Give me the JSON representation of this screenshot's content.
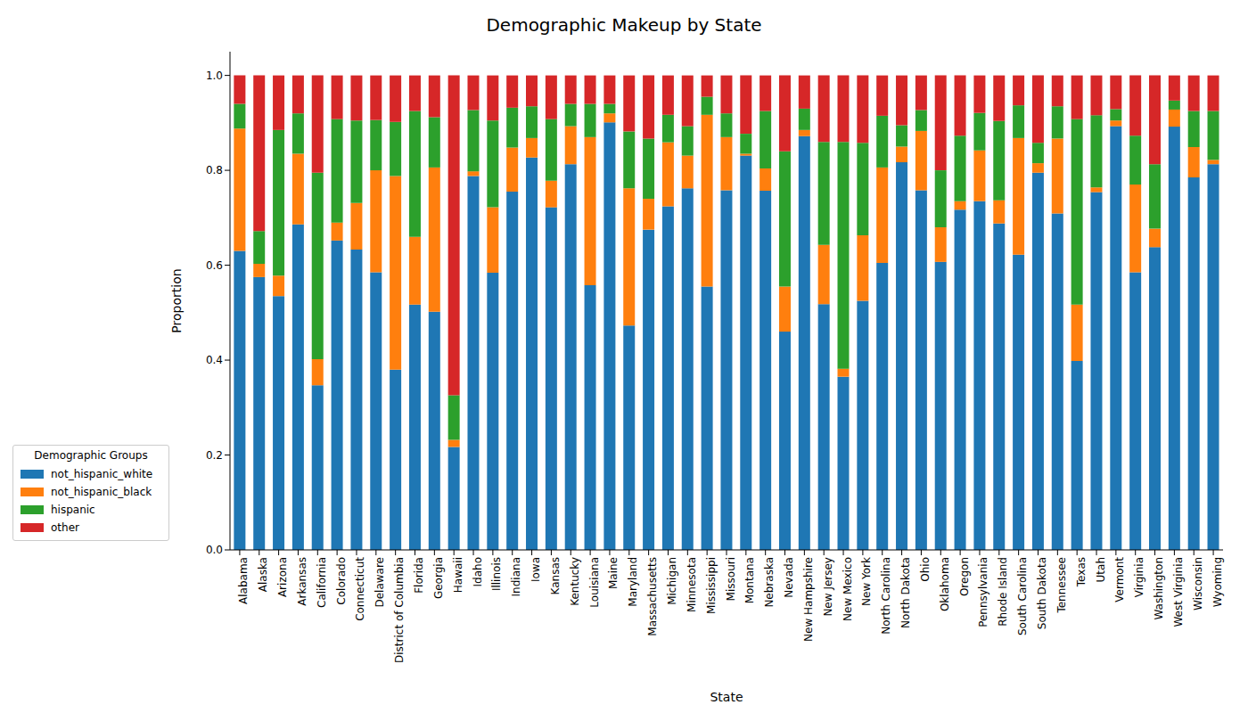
{
  "chart_data": {
    "type": "bar",
    "title": "Demographic Makeup by State",
    "x_label": "State",
    "y_label": "Proportion",
    "stacked": true,
    "legend": "lower left",
    "legend_title": "Demographic Groups",
    "ylim": [
      0,
      1.05
    ],
    "yticks": [
      {
        "value": 0,
        "label": "0.0"
      },
      0.2,
      0.4,
      0.6,
      0.8,
      {
        "value": 1,
        "label": "1.0"
      }
    ],
    "categories": [
      "Alabama",
      "Alaska",
      "Arizona",
      "Arkansas",
      "California",
      "Colorado",
      "Connecticut",
      "Delaware",
      "District of Columbia",
      "Florida",
      "Georgia",
      "Hawaii",
      "Idaho",
      "Illinois",
      "Indiana",
      "Iowa",
      "Kansas",
      "Kentucky",
      "Louisiana",
      "Maine",
      "Maryland",
      "Massachusetts",
      "Michigan",
      "Minnesota",
      "Mississippi",
      "Missouri",
      "Montana",
      "Nebraska",
      "Nevada",
      "New Hampshire",
      "New Jersey",
      "New Mexico",
      "New York",
      "North Carolina",
      "North Dakota",
      "Ohio",
      "Oklahoma",
      "Oregon",
      "Pennsylvania",
      "Rhode Island",
      "South Carolina",
      "South Dakota",
      "Tennessee",
      "Texas",
      "Utah",
      "Vermont",
      "Virginia",
      "Washington",
      "West Virginia",
      "Wisconsin",
      "Wyoming"
    ],
    "series": [
      {
        "name": "not_hispanic_white",
        "color": "#1f77b4",
        "values": [
          0.63,
          0.575,
          0.535,
          0.686,
          0.347,
          0.652,
          0.633,
          0.585,
          0.38,
          0.517,
          0.502,
          0.217,
          0.788,
          0.584,
          0.755,
          0.827,
          0.722,
          0.813,
          0.558,
          0.901,
          0.473,
          0.675,
          0.724,
          0.762,
          0.555,
          0.758,
          0.831,
          0.757,
          0.46,
          0.872,
          0.518,
          0.365,
          0.525,
          0.605,
          0.817,
          0.758,
          0.607,
          0.717,
          0.735,
          0.688,
          0.622,
          0.795,
          0.709,
          0.398,
          0.754,
          0.893,
          0.585,
          0.638,
          0.892,
          0.785,
          0.813
        ]
      },
      {
        "name": "not_hispanic_black",
        "color": "#ff7f0e",
        "values": [
          0.258,
          0.028,
          0.043,
          0.149,
          0.055,
          0.038,
          0.098,
          0.215,
          0.408,
          0.143,
          0.304,
          0.015,
          0.01,
          0.138,
          0.093,
          0.041,
          0.056,
          0.08,
          0.312,
          0.019,
          0.289,
          0.065,
          0.135,
          0.069,
          0.362,
          0.112,
          0.004,
          0.047,
          0.095,
          0.013,
          0.125,
          0.017,
          0.138,
          0.201,
          0.033,
          0.125,
          0.073,
          0.018,
          0.107,
          0.049,
          0.246,
          0.02,
          0.158,
          0.119,
          0.01,
          0.012,
          0.185,
          0.039,
          0.036,
          0.064,
          0.009
        ]
      },
      {
        "name": "hispanic",
        "color": "#2ca02c",
        "values": [
          0.052,
          0.069,
          0.307,
          0.085,
          0.393,
          0.218,
          0.174,
          0.106,
          0.114,
          0.265,
          0.106,
          0.094,
          0.129,
          0.183,
          0.084,
          0.067,
          0.13,
          0.047,
          0.07,
          0.02,
          0.12,
          0.127,
          0.058,
          0.062,
          0.038,
          0.05,
          0.042,
          0.121,
          0.285,
          0.045,
          0.217,
          0.478,
          0.195,
          0.109,
          0.045,
          0.044,
          0.12,
          0.138,
          0.079,
          0.167,
          0.069,
          0.043,
          0.068,
          0.391,
          0.152,
          0.024,
          0.103,
          0.136,
          0.019,
          0.076,
          0.103
        ]
      },
      {
        "name": "other",
        "color": "#d62728",
        "values": [
          0.06,
          0.328,
          0.115,
          0.08,
          0.205,
          0.092,
          0.095,
          0.094,
          0.098,
          0.075,
          0.088,
          0.674,
          0.073,
          0.095,
          0.068,
          0.065,
          0.092,
          0.06,
          0.06,
          0.06,
          0.118,
          0.133,
          0.083,
          0.107,
          0.045,
          0.08,
          0.123,
          0.075,
          0.16,
          0.07,
          0.14,
          0.14,
          0.142,
          0.085,
          0.105,
          0.073,
          0.2,
          0.127,
          0.079,
          0.096,
          0.063,
          0.142,
          0.065,
          0.092,
          0.084,
          0.071,
          0.127,
          0.187,
          0.053,
          0.075,
          0.075
        ]
      }
    ]
  }
}
